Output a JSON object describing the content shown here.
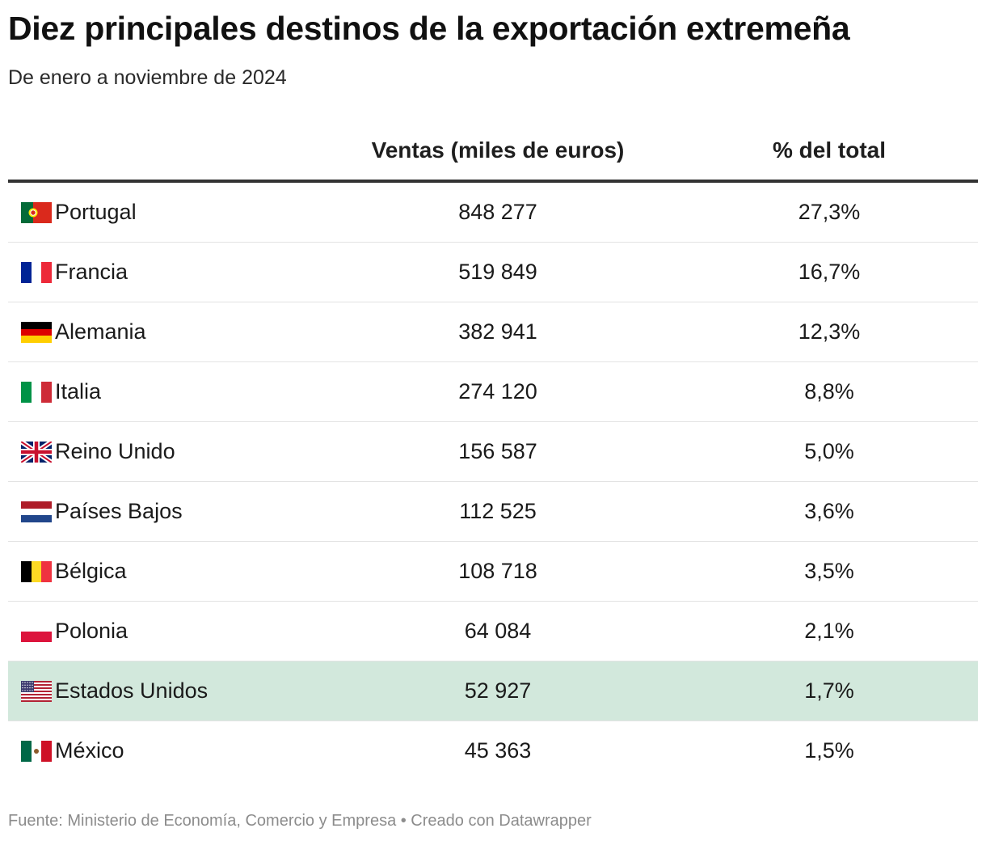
{
  "header": {
    "title": "Diez principales destinos de la exportación extremeña",
    "subtitle": "De enero a noviembre de 2024"
  },
  "chart_data": {
    "type": "table",
    "columns": [
      "",
      "Ventas (miles de euros)",
      "% del total"
    ],
    "rows": [
      {
        "country": "Portugal",
        "flag": "portugal-flag-icon",
        "ventas": "848 277",
        "pct": "27,3%"
      },
      {
        "country": "Francia",
        "flag": "france-flag-icon",
        "ventas": "519 849",
        "pct": "16,7%"
      },
      {
        "country": "Alemania",
        "flag": "germany-flag-icon",
        "ventas": "382 941",
        "pct": "12,3%"
      },
      {
        "country": "Italia",
        "flag": "italy-flag-icon",
        "ventas": "274 120",
        "pct": "8,8%"
      },
      {
        "country": "Reino Unido",
        "flag": "uk-flag-icon",
        "ventas": "156 587",
        "pct": "5,0%"
      },
      {
        "country": "Países Bajos",
        "flag": "netherlands-flag-icon",
        "ventas": "112 525",
        "pct": "3,6%"
      },
      {
        "country": "Bélgica",
        "flag": "belgium-flag-icon",
        "ventas": "108 718",
        "pct": "3,5%"
      },
      {
        "country": "Polonia",
        "flag": "poland-flag-icon",
        "ventas": "64 084",
        "pct": "2,1%"
      },
      {
        "country": "Estados Unidos",
        "flag": "usa-flag-icon",
        "ventas": "52 927",
        "pct": "1,7%",
        "highlighted": true,
        "highlight_color": "#d2e8dc"
      },
      {
        "country": "México",
        "flag": "mexico-flag-icon",
        "ventas": "45 363",
        "pct": "1,5%"
      }
    ]
  },
  "footer": {
    "source": "Fuente: Ministerio de Economía, Comercio y Empresa • Creado con Datawrapper"
  }
}
